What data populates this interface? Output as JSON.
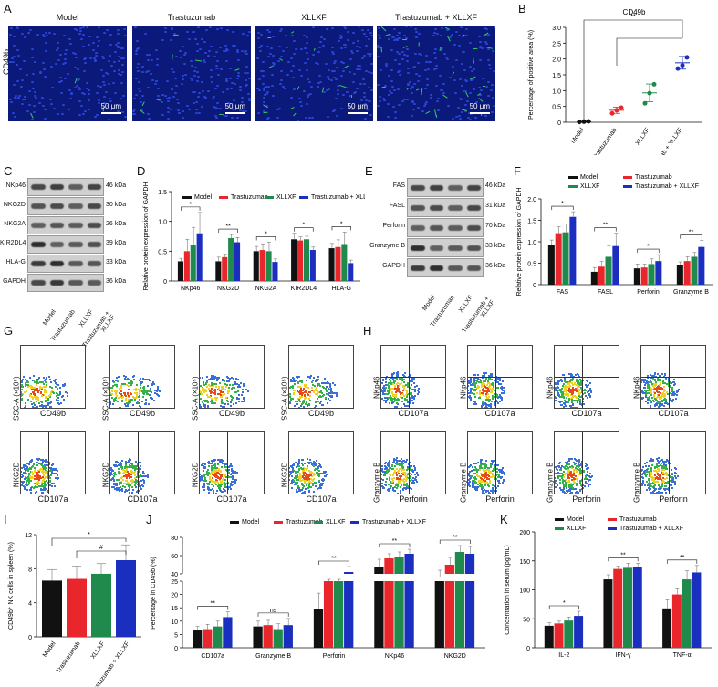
{
  "panels": {
    "A": "A",
    "B": "B",
    "C": "C",
    "D": "D",
    "E": "E",
    "F": "F",
    "G": "G",
    "H": "H",
    "I": "I",
    "J": "J",
    "K": "K"
  },
  "groups": [
    "Model",
    "Trastuzumab",
    "XLLXF",
    "Trastuzumab + XLLXF"
  ],
  "panelA": {
    "row_label": "CD49b",
    "scale": "50 μm"
  },
  "colors": {
    "model": "#111111",
    "trastuzumab": "#e8262b",
    "xllxf": "#1f8a4c",
    "combo": "#1a2fbf",
    "fluor": "#0b1a7a"
  },
  "panelC": {
    "proteins": [
      "NKp46",
      "NKG2D",
      "NKG2A",
      "KIR2DL4",
      "HLA-G",
      "GAPDH"
    ],
    "kda": [
      "46 kDa",
      "30 kDa",
      "26 kDa",
      "39 kDa",
      "33 kDa",
      "36 kDa"
    ],
    "lanes": [
      "Model",
      "Trastuzumab",
      "XLLXF",
      "Trastuzumab + XLLXF"
    ]
  },
  "panelE": {
    "proteins": [
      "FAS",
      "FASL",
      "Perforin",
      "Granzyme B",
      "GAPDH"
    ],
    "kda": [
      "46 kDa",
      "31 kDa",
      "70 kDa",
      "33 kDa",
      "36 kDa"
    ],
    "lanes": [
      "Model",
      "Trastuzumab",
      "XLLXF",
      "Trastuzumab + XLLXF"
    ]
  },
  "panelG": {
    "xlabel": "CD49b",
    "ylabel": "SSC-A (×10⁵)",
    "xlabel2": "CD107a",
    "ylabel2": "NKG2D"
  },
  "panelH": {
    "xlabel": "CD107a",
    "ylabel": "NKp46",
    "xlabel2": "Perforin",
    "ylabel2": "Granzyme B"
  },
  "chart_data": [
    {
      "id": "B",
      "type": "scatter",
      "title": "CD49b",
      "ylabel": "Percentage of positive area (%)",
      "ylim": [
        0,
        3.0
      ],
      "yticks": [
        "0",
        "0.5",
        "1.0",
        "1.5",
        "2.0",
        "2.5",
        "3.0"
      ],
      "categories": [
        "Model",
        "Trastuzumab",
        "XLLXF",
        "Trastuzumab + XLLXF"
      ],
      "means": [
        0.01,
        0.38,
        0.93,
        1.88
      ],
      "sd": [
        0.01,
        0.1,
        0.28,
        0.2
      ],
      "points": [
        [
          0.01,
          0.02,
          0.03
        ],
        [
          0.28,
          0.38,
          0.46
        ],
        [
          0.6,
          0.92,
          1.2
        ],
        [
          1.7,
          1.8,
          2.05
        ]
      ],
      "sig": "**"
    },
    {
      "id": "D",
      "type": "bar",
      "ylabel": "Relative protein expression of GAPDH",
      "ylim": [
        0,
        1.5
      ],
      "yticks": [
        "0",
        "0.5",
        "1.0",
        "1.5"
      ],
      "categories": [
        "NKp46",
        "NKG2D",
        "NKG2A",
        "KIR2DL4",
        "HLA-G"
      ],
      "series": [
        {
          "name": "Model",
          "values": [
            0.33,
            0.33,
            0.5,
            0.7,
            0.55
          ],
          "err": [
            0.05,
            0.07,
            0.08,
            0.1,
            0.08
          ]
        },
        {
          "name": "Trastuzumab",
          "values": [
            0.5,
            0.4,
            0.52,
            0.68,
            0.57
          ],
          "err": [
            0.2,
            0.05,
            0.1,
            0.06,
            0.12
          ]
        },
        {
          "name": "XLLXF",
          "values": [
            0.6,
            0.72,
            0.5,
            0.7,
            0.62
          ],
          "err": [
            0.3,
            0.06,
            0.15,
            0.05,
            0.2
          ]
        },
        {
          "name": "Trastuzumab + XLLXF",
          "values": [
            0.8,
            0.65,
            0.32,
            0.52,
            0.3
          ],
          "err": [
            0.35,
            0.08,
            0.05,
            0.05,
            0.05
          ]
        }
      ],
      "sig": [
        "*",
        "**",
        "*",
        "*",
        "*"
      ]
    },
    {
      "id": "F",
      "type": "bar",
      "ylabel": "Relative protein expression of GAPDH",
      "ylim": [
        0,
        2.0
      ],
      "yticks": [
        "0",
        "0.5",
        "1.0",
        "1.5",
        "2.0"
      ],
      "categories": [
        "FAS",
        "FASL",
        "Perforin",
        "Granzyme B"
      ],
      "series": [
        {
          "name": "Model",
          "values": [
            0.92,
            0.3,
            0.38,
            0.45
          ],
          "err": [
            0.12,
            0.1,
            0.1,
            0.08
          ]
        },
        {
          "name": "Trastuzumab",
          "values": [
            1.2,
            0.42,
            0.4,
            0.55
          ],
          "err": [
            0.15,
            0.12,
            0.08,
            0.1
          ]
        },
        {
          "name": "XLLXF",
          "values": [
            1.22,
            0.65,
            0.48,
            0.65
          ],
          "err": [
            0.2,
            0.25,
            0.12,
            0.1
          ]
        },
        {
          "name": "Trastuzumab + XLLXF",
          "values": [
            1.58,
            0.9,
            0.55,
            0.88
          ],
          "err": [
            0.12,
            0.3,
            0.15,
            0.15
          ]
        }
      ],
      "sig": [
        "*",
        "**",
        "*",
        "**",
        "**"
      ]
    },
    {
      "id": "I",
      "type": "bar",
      "ylabel": "CD49b⁺ NK cells in spleen (%)",
      "ylim": [
        0,
        12
      ],
      "yticks": [
        "0",
        "4",
        "8",
        "12"
      ],
      "categories": [
        "Model",
        "Trastuzumab",
        "XLLXF",
        "Trastuzumab + XLLXF"
      ],
      "values": [
        6.6,
        6.8,
        7.4,
        9.0
      ],
      "err": [
        1.3,
        1.5,
        1.2,
        1.8
      ],
      "sig": [
        "*",
        "#"
      ]
    },
    {
      "id": "J",
      "type": "bar",
      "ylabel": "Percentage in CD49b (%)",
      "yticks_low": [
        "0",
        "5",
        "10",
        "15",
        "20",
        "25"
      ],
      "yticks_high": [
        "40",
        "60",
        "80"
      ],
      "categories": [
        "CD107a",
        "Granzyme B",
        "Perforin",
        "NKp46",
        "NKG2D"
      ],
      "series": [
        {
          "name": "Model",
          "values": [
            6.5,
            8.0,
            14.5,
            48,
            37
          ],
          "err": [
            1.5,
            2,
            6,
            8,
            7
          ]
        },
        {
          "name": "Trastuzumab",
          "values": [
            7.0,
            8.5,
            32,
            57,
            50
          ],
          "err": [
            1.8,
            1.8,
            2,
            5,
            8
          ]
        },
        {
          "name": "XLLXF",
          "values": [
            8.0,
            7.0,
            31,
            59,
            64
          ],
          "err": [
            2,
            2,
            3,
            5,
            7
          ]
        },
        {
          "name": "Trastuzumab + XLLXF",
          "values": [
            11.5,
            8.5,
            42,
            62,
            62
          ],
          "err": [
            2,
            2.5,
            6,
            5,
            8
          ]
        }
      ],
      "sig": [
        "**",
        "ns",
        "**",
        "**",
        "**"
      ]
    },
    {
      "id": "K",
      "type": "bar",
      "ylabel": "Concentration in serum (pg/mL)",
      "ylim": [
        0,
        200
      ],
      "yticks": [
        "0",
        "50",
        "100",
        "150",
        "200"
      ],
      "categories": [
        "IL-2",
        "IFN-γ",
        "TNF-α"
      ],
      "series": [
        {
          "name": "Model",
          "values": [
            38,
            118,
            68
          ],
          "err": [
            5,
            8,
            15
          ]
        },
        {
          "name": "Trastuzumab",
          "values": [
            42,
            136,
            92
          ],
          "err": [
            4,
            5,
            10
          ]
        },
        {
          "name": "XLLXF",
          "values": [
            47,
            138,
            118
          ],
          "err": [
            6,
            8,
            15
          ]
        },
        {
          "name": "Trastuzumab + XLLXF",
          "values": [
            55,
            140,
            130
          ],
          "err": [
            8,
            6,
            12
          ]
        }
      ],
      "sig": [
        "*",
        "**",
        "**",
        "**"
      ]
    }
  ]
}
